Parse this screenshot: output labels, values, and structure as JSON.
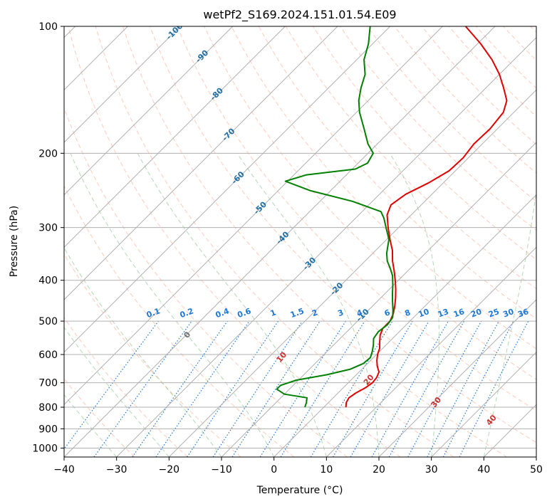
{
  "chart_data": {
    "type": "line",
    "title": "wetPf2_S169.2024.151.01.54.E09",
    "xlabel": "Temperature (°C)",
    "ylabel": "Pressure (hPa)",
    "xlim": [
      -40,
      50
    ],
    "ylim": [
      1050,
      100
    ],
    "y_scale": "log",
    "skew": 45,
    "grid": true,
    "x_ticks": [
      -40,
      -30,
      -20,
      -10,
      0,
      10,
      20,
      30,
      40,
      50
    ],
    "y_ticks": [
      100,
      200,
      300,
      400,
      500,
      600,
      700,
      800,
      900,
      1000
    ],
    "series": [
      {
        "color": "#e00000",
        "points": [
          {
            "p": 800,
            "t": 4.2
          },
          {
            "p": 780,
            "t": 3.4
          },
          {
            "p": 760,
            "t": 3.0
          },
          {
            "p": 740,
            "t": 3.4
          },
          {
            "p": 720,
            "t": 4.2
          },
          {
            "p": 700,
            "t": 4.6
          },
          {
            "p": 680,
            "t": 4.4
          },
          {
            "p": 660,
            "t": 3.8
          },
          {
            "p": 640,
            "t": 2.4
          },
          {
            "p": 620,
            "t": 1.2
          },
          {
            "p": 600,
            "t": 0.2
          },
          {
            "p": 580,
            "t": -0.6
          },
          {
            "p": 560,
            "t": -1.8
          },
          {
            "p": 540,
            "t": -3.0
          },
          {
            "p": 520,
            "t": -3.8
          },
          {
            "p": 500,
            "t": -3.8
          },
          {
            "p": 480,
            "t": -4.6
          },
          {
            "p": 460,
            "t": -5.8
          },
          {
            "p": 440,
            "t": -7.2
          },
          {
            "p": 420,
            "t": -8.8
          },
          {
            "p": 400,
            "t": -10.6
          },
          {
            "p": 380,
            "t": -12.6
          },
          {
            "p": 360,
            "t": -14.8
          },
          {
            "p": 340,
            "t": -16.8
          },
          {
            "p": 320,
            "t": -19.4
          },
          {
            "p": 300,
            "t": -22.0
          },
          {
            "p": 280,
            "t": -24.6
          },
          {
            "p": 265,
            "t": -25.8
          },
          {
            "p": 250,
            "t": -25.0
          },
          {
            "p": 235,
            "t": -22.8
          },
          {
            "p": 220,
            "t": -21.2
          },
          {
            "p": 205,
            "t": -21.0
          },
          {
            "p": 190,
            "t": -21.6
          },
          {
            "p": 175,
            "t": -21.4
          },
          {
            "p": 160,
            "t": -22.0
          },
          {
            "p": 150,
            "t": -23.6
          },
          {
            "p": 140,
            "t": -26.6
          },
          {
            "p": 130,
            "t": -30.0
          },
          {
            "p": 120,
            "t": -34.2
          },
          {
            "p": 110,
            "t": -39.4
          },
          {
            "p": 100,
            "t": -45.6
          }
        ]
      },
      {
        "color": "#008000",
        "points": [
          {
            "p": 800,
            "t": -3.6
          },
          {
            "p": 780,
            "t": -4.2
          },
          {
            "p": 760,
            "t": -5.0
          },
          {
            "p": 745,
            "t": -10.0
          },
          {
            "p": 725,
            "t": -12.4
          },
          {
            "p": 710,
            "t": -12.4
          },
          {
            "p": 690,
            "t": -10.4
          },
          {
            "p": 670,
            "t": -5.6
          },
          {
            "p": 650,
            "t": -2.2
          },
          {
            "p": 630,
            "t": -0.8
          },
          {
            "p": 610,
            "t": -0.6
          },
          {
            "p": 590,
            "t": -1.4
          },
          {
            "p": 570,
            "t": -2.4
          },
          {
            "p": 550,
            "t": -3.6
          },
          {
            "p": 530,
            "t": -4.0
          },
          {
            "p": 510,
            "t": -3.6
          },
          {
            "p": 490,
            "t": -4.0
          },
          {
            "p": 470,
            "t": -5.4
          },
          {
            "p": 450,
            "t": -7.0
          },
          {
            "p": 430,
            "t": -8.6
          },
          {
            "p": 410,
            "t": -10.2
          },
          {
            "p": 390,
            "t": -12.0
          },
          {
            "p": 375,
            "t": -13.8
          },
          {
            "p": 360,
            "t": -15.8
          },
          {
            "p": 345,
            "t": -17.4
          },
          {
            "p": 320,
            "t": -19.6
          },
          {
            "p": 300,
            "t": -22.4
          },
          {
            "p": 285,
            "t": -24.6
          },
          {
            "p": 275,
            "t": -26.4
          },
          {
            "p": 260,
            "t": -33.8
          },
          {
            "p": 245,
            "t": -44.0
          },
          {
            "p": 233,
            "t": -50.4
          },
          {
            "p": 225,
            "t": -47.6
          },
          {
            "p": 218,
            "t": -39.4
          },
          {
            "p": 211,
            "t": -38.2
          },
          {
            "p": 200,
            "t": -39.0
          },
          {
            "p": 190,
            "t": -41.8
          },
          {
            "p": 175,
            "t": -45.4
          },
          {
            "p": 160,
            "t": -49.4
          },
          {
            "p": 150,
            "t": -51.8
          },
          {
            "p": 140,
            "t": -53.8
          },
          {
            "p": 130,
            "t": -55.6
          },
          {
            "p": 120,
            "t": -58.6
          },
          {
            "p": 110,
            "t": -60.8
          },
          {
            "p": 100,
            "t": -63.8
          }
        ]
      }
    ],
    "isotherm_labels": [
      "-100",
      "-90",
      "-80",
      "-70",
      "-60",
      "-50",
      "-40",
      "-30",
      "-20",
      "-10"
    ],
    "mixing_ratio_labels": [
      "0.1",
      "0.2",
      "0.4",
      "0.6",
      "1",
      "1.5",
      "2",
      "3",
      "4",
      "6",
      "8",
      "10",
      "13",
      "16",
      "20",
      "25",
      "30",
      "36"
    ],
    "moist_adiabat_labels": [
      "0",
      "10",
      "20",
      "30",
      "40"
    ],
    "colors": {
      "temperature": "#e00000",
      "dewpoint": "#008000",
      "isotherm_grid": "#b0b0b0",
      "dry_adiabat": "#ff9f80",
      "moist_adiabat": "#80c080",
      "mixing_ratio": "#1e78d8",
      "isotherm_label": "#1f6fa8",
      "adiabat_label": "#d03030"
    }
  }
}
